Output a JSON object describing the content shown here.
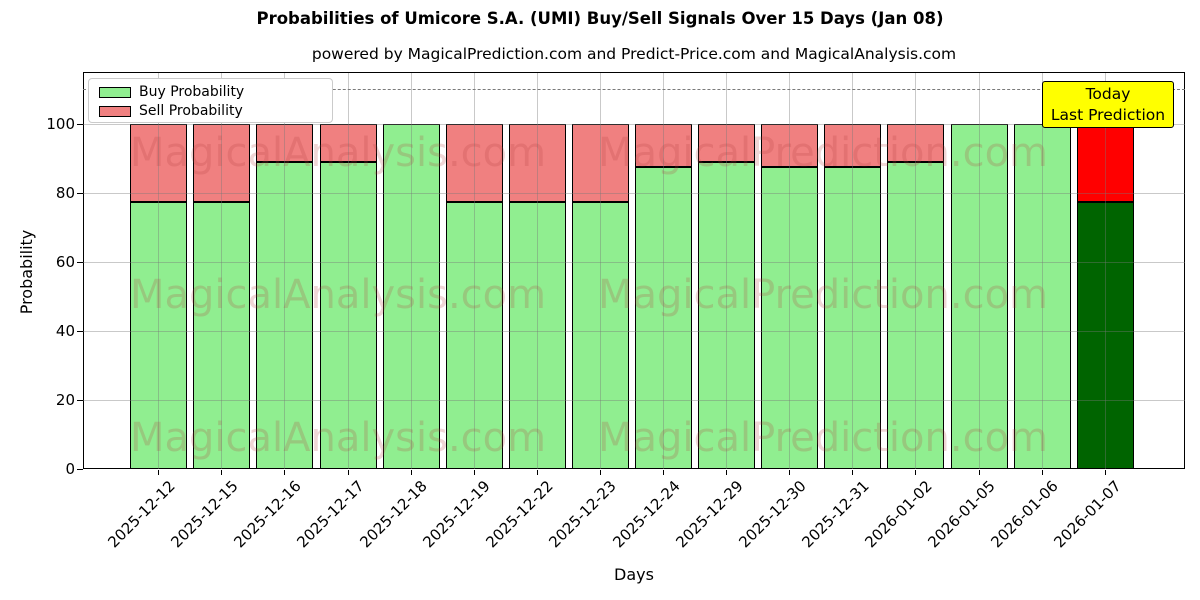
{
  "title": "Probabilities of Umicore S.A. (UMI) Buy/Sell Signals Over 15 Days (Jan 08)",
  "subtitle": "powered by MagicalPrediction.com and Predict-Price.com and MagicalAnalysis.com",
  "legend": {
    "items": [
      {
        "label": "Buy Probability",
        "color": "#90EE90"
      },
      {
        "label": "Sell Probability",
        "color": "#F08080"
      }
    ]
  },
  "annotation": {
    "lines": [
      "Today",
      "Last Prediction"
    ],
    "bg_color": "#FFFF00"
  },
  "watermarks": {
    "left_text": "MagicalAnalysis.com",
    "right_text": "MagicalPrediction.com"
  },
  "chart_data": {
    "type": "bar",
    "stacked": true,
    "title": "Probabilities of Umicore S.A. (UMI) Buy/Sell Signals Over 15 Days (Jan 08)",
    "xlabel": "Days",
    "ylabel": "Probability",
    "categories": [
      "2025-12-12",
      "2025-12-15",
      "2025-12-16",
      "2025-12-17",
      "2025-12-18",
      "2025-12-19",
      "2025-12-22",
      "2025-12-23",
      "2025-12-24",
      "2025-12-29",
      "2025-12-30",
      "2025-12-31",
      "2026-01-02",
      "2026-01-05",
      "2026-01-06",
      "2026-01-07"
    ],
    "series": [
      {
        "name": "Buy Probability",
        "color": "#90EE90",
        "values": [
          77.5,
          77.5,
          88.9,
          88.9,
          100,
          77.5,
          77.5,
          77.5,
          87.5,
          88.9,
          87.5,
          87.5,
          88.9,
          100,
          100,
          77.5
        ]
      },
      {
        "name": "Sell Probability",
        "color": "#F08080",
        "values": [
          22.5,
          22.5,
          11.1,
          11.1,
          0,
          22.5,
          22.5,
          22.5,
          12.5,
          11.1,
          12.5,
          12.5,
          11.1,
          0,
          0,
          22.5
        ]
      }
    ],
    "today": {
      "index": 15,
      "buy_color": "#006400",
      "sell_color": "#FF0000"
    },
    "yticks": [
      0,
      20,
      40,
      60,
      80,
      100
    ],
    "ylim": [
      0,
      115
    ],
    "threshold_dashed_line_y": 110,
    "grid": true,
    "legend_position": "upper-left"
  }
}
